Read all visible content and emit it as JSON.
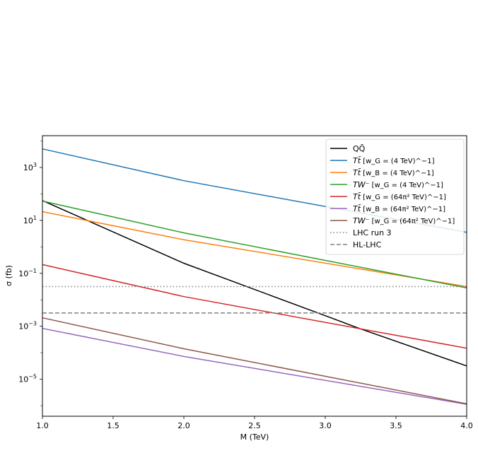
{
  "chart_data": {
    "type": "line",
    "title": "",
    "xlabel": "M (TeV)",
    "ylabel": "σ (fb)",
    "x_scale": "linear",
    "y_scale": "log",
    "xlim": [
      1.0,
      4.0
    ],
    "ylim_log10": [
      -6.4,
      4.2
    ],
    "grid": false,
    "legend_placement": "top-right",
    "x_ticks": [
      {
        "value": 1.0,
        "label": "1.0"
      },
      {
        "value": 1.5,
        "label": "1.5"
      },
      {
        "value": 2.0,
        "label": "2.0"
      },
      {
        "value": 2.5,
        "label": "2.5"
      },
      {
        "value": 3.0,
        "label": "3.0"
      },
      {
        "value": 3.5,
        "label": "3.5"
      },
      {
        "value": 4.0,
        "label": "4.0"
      }
    ],
    "y_ticks": [
      {
        "log10": 3,
        "base": "10",
        "exp": "3"
      },
      {
        "log10": 1,
        "base": "10",
        "exp": "1"
      },
      {
        "log10": -1,
        "base": "10",
        "exp": "−1"
      },
      {
        "log10": -3,
        "base": "10",
        "exp": "−3"
      },
      {
        "log10": -5,
        "base": "10",
        "exp": "−5"
      }
    ],
    "series": [
      {
        "name": "QQ̄",
        "color": "#000000",
        "style": "solid",
        "x": [
          1.0,
          2.0,
          3.0,
          3.25,
          4.0
        ],
        "log10_y": [
          1.75,
          -0.62,
          -2.6,
          -3.1,
          -4.5
        ]
      },
      {
        "name": "Tt̄ [w_G = (4 TeV)^−1]",
        "color": "#1f77b4",
        "style": "solid",
        "x": [
          1.0,
          2.0,
          4.0
        ],
        "log10_y": [
          3.7,
          2.5,
          0.55
        ]
      },
      {
        "name": "Tt̄ [w_B = (4 TeV)^−1]",
        "color": "#ff7f0e",
        "style": "solid",
        "x": [
          1.0,
          2.0,
          4.0
        ],
        "log10_y": [
          1.33,
          0.27,
          -1.5
        ]
      },
      {
        "name": "TW⁻ [w_G = (4 TeV)^−1]",
        "color": "#2ca02c",
        "style": "solid",
        "x": [
          1.0,
          2.0,
          4.0
        ],
        "log10_y": [
          1.73,
          0.53,
          -1.55
        ]
      },
      {
        "name": "Tt̄ [w_G = (64π² TeV)^−1]",
        "color": "#d62728",
        "style": "solid",
        "x": [
          1.0,
          2.0,
          4.0
        ],
        "log10_y": [
          -0.67,
          -1.88,
          -3.83
        ]
      },
      {
        "name": "Tt̄ [w_B = (64π² TeV)^−1]",
        "color": "#9467bd",
        "style": "solid",
        "x": [
          1.0,
          2.0,
          4.0
        ],
        "log10_y": [
          -3.08,
          -4.14,
          -5.95
        ]
      },
      {
        "name": "TW⁻ [w_G = (64π² TeV)^−1]",
        "color": "#8c564b",
        "style": "solid",
        "x": [
          1.0,
          2.0,
          4.0
        ],
        "log10_y": [
          -2.68,
          -3.85,
          -5.93
        ]
      },
      {
        "name": "LHC run 3",
        "color": "#808080",
        "style": "dotted",
        "x": [
          1.0,
          4.0
        ],
        "log10_y": [
          -1.5,
          -1.5
        ]
      },
      {
        "name": "HL-LHC",
        "color": "#808080",
        "style": "dashed",
        "x": [
          1.0,
          4.0
        ],
        "log10_y": [
          -2.5,
          -2.5
        ]
      }
    ],
    "legend_entries": [
      {
        "prefix": "QQ̄",
        "bracket": ""
      },
      {
        "prefix": "Tt̄",
        "bracket": "[w_G = (4 TeV)^−1]"
      },
      {
        "prefix": "Tt̄",
        "bracket": "[w_B = (4 TeV)^−1]"
      },
      {
        "prefix": "TW⁻",
        "bracket": "[w_G = (4 TeV)^−1]"
      },
      {
        "prefix": "Tt̄",
        "bracket": "[w_G = (64π² TeV)^−1]"
      },
      {
        "prefix": "Tt̄",
        "bracket": "[w_B = (64π² TeV)^−1]"
      },
      {
        "prefix": "TW⁻",
        "bracket": "[w_G = (64π² TeV)^−1]"
      },
      {
        "prefix": "LHC run 3",
        "bracket": ""
      },
      {
        "prefix": "HL-LHC",
        "bracket": ""
      }
    ]
  }
}
